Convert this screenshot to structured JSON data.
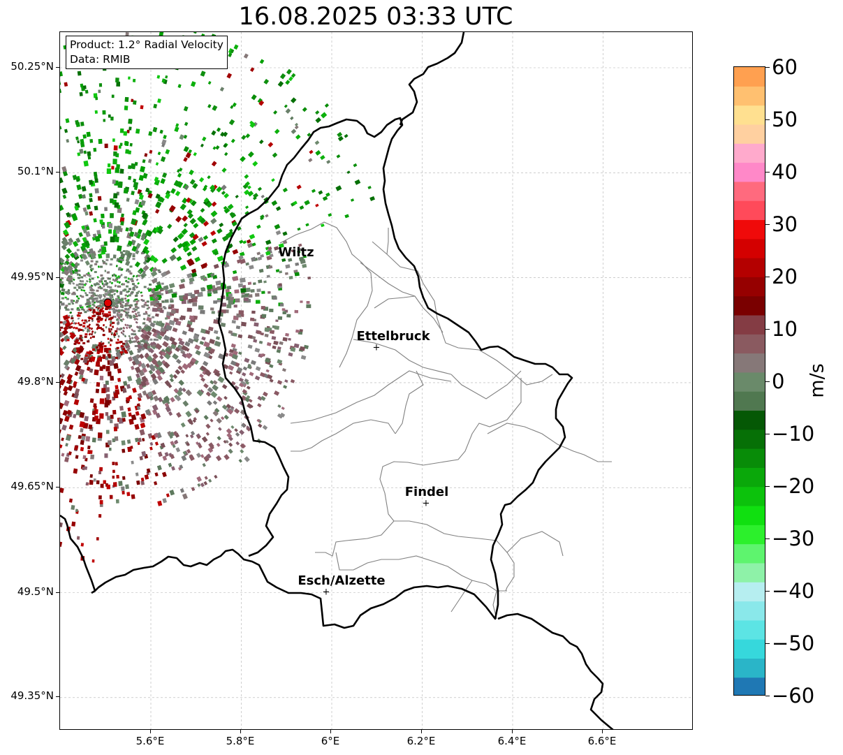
{
  "title": "16.08.2025 03:33 UTC",
  "info_box": {
    "product": "Product: 1.2° Radial Velocity",
    "data": "Data: RMIB"
  },
  "lat_ticks": [
    "50.25°N",
    "50.1°N",
    "49.95°N",
    "49.8°N",
    "49.65°N",
    "49.5°N",
    "49.35°N"
  ],
  "lon_ticks": [
    "5.6°E",
    "5.8°E",
    "6°E",
    "6.2°E",
    "6.4°E",
    "6.6°E"
  ],
  "cities": [
    {
      "name": "Wiltz"
    },
    {
      "name": "Ettelbruck"
    },
    {
      "name": "Findel"
    },
    {
      "name": "Esch/Alzette"
    }
  ],
  "colorbar": {
    "unit": "m/s",
    "ticks": [
      "60",
      "50",
      "40",
      "30",
      "20",
      "10",
      "0",
      "−10",
      "−20",
      "−30",
      "−40",
      "−50",
      "−60"
    ],
    "range": [
      -60,
      60
    ],
    "colors": [
      "#1f78b4",
      "#2ab5c8",
      "#36d8dc",
      "#5ce4e4",
      "#8ae8ea",
      "#b6eef0",
      "#8ef2a8",
      "#5ef46e",
      "#2cf02c",
      "#10e010",
      "#0cc20c",
      "#0aa80a",
      "#088c08",
      "#067006",
      "#055805",
      "#507850",
      "#6a8a6a",
      "#867878",
      "#8a5a60",
      "#843c44",
      "#7a0000",
      "#960000",
      "#b40000",
      "#d40000",
      "#f00a0a",
      "#ff4a5a",
      "#ff6a7e",
      "#ff88c8",
      "#ffaacc",
      "#ffd0a0",
      "#ffe090",
      "#ffc070",
      "#ffa050"
    ]
  },
  "radar_site": {
    "lon": 5.505,
    "lat": 49.914
  },
  "map_extent": {
    "lon_min": 5.4,
    "lon_max": 6.8,
    "lat_min": 49.3,
    "lat_max": 50.3
  },
  "colors": {
    "border": "#000000",
    "district": "#808080",
    "grid": "#b0b0b0",
    "radar_site": "#e00000"
  }
}
